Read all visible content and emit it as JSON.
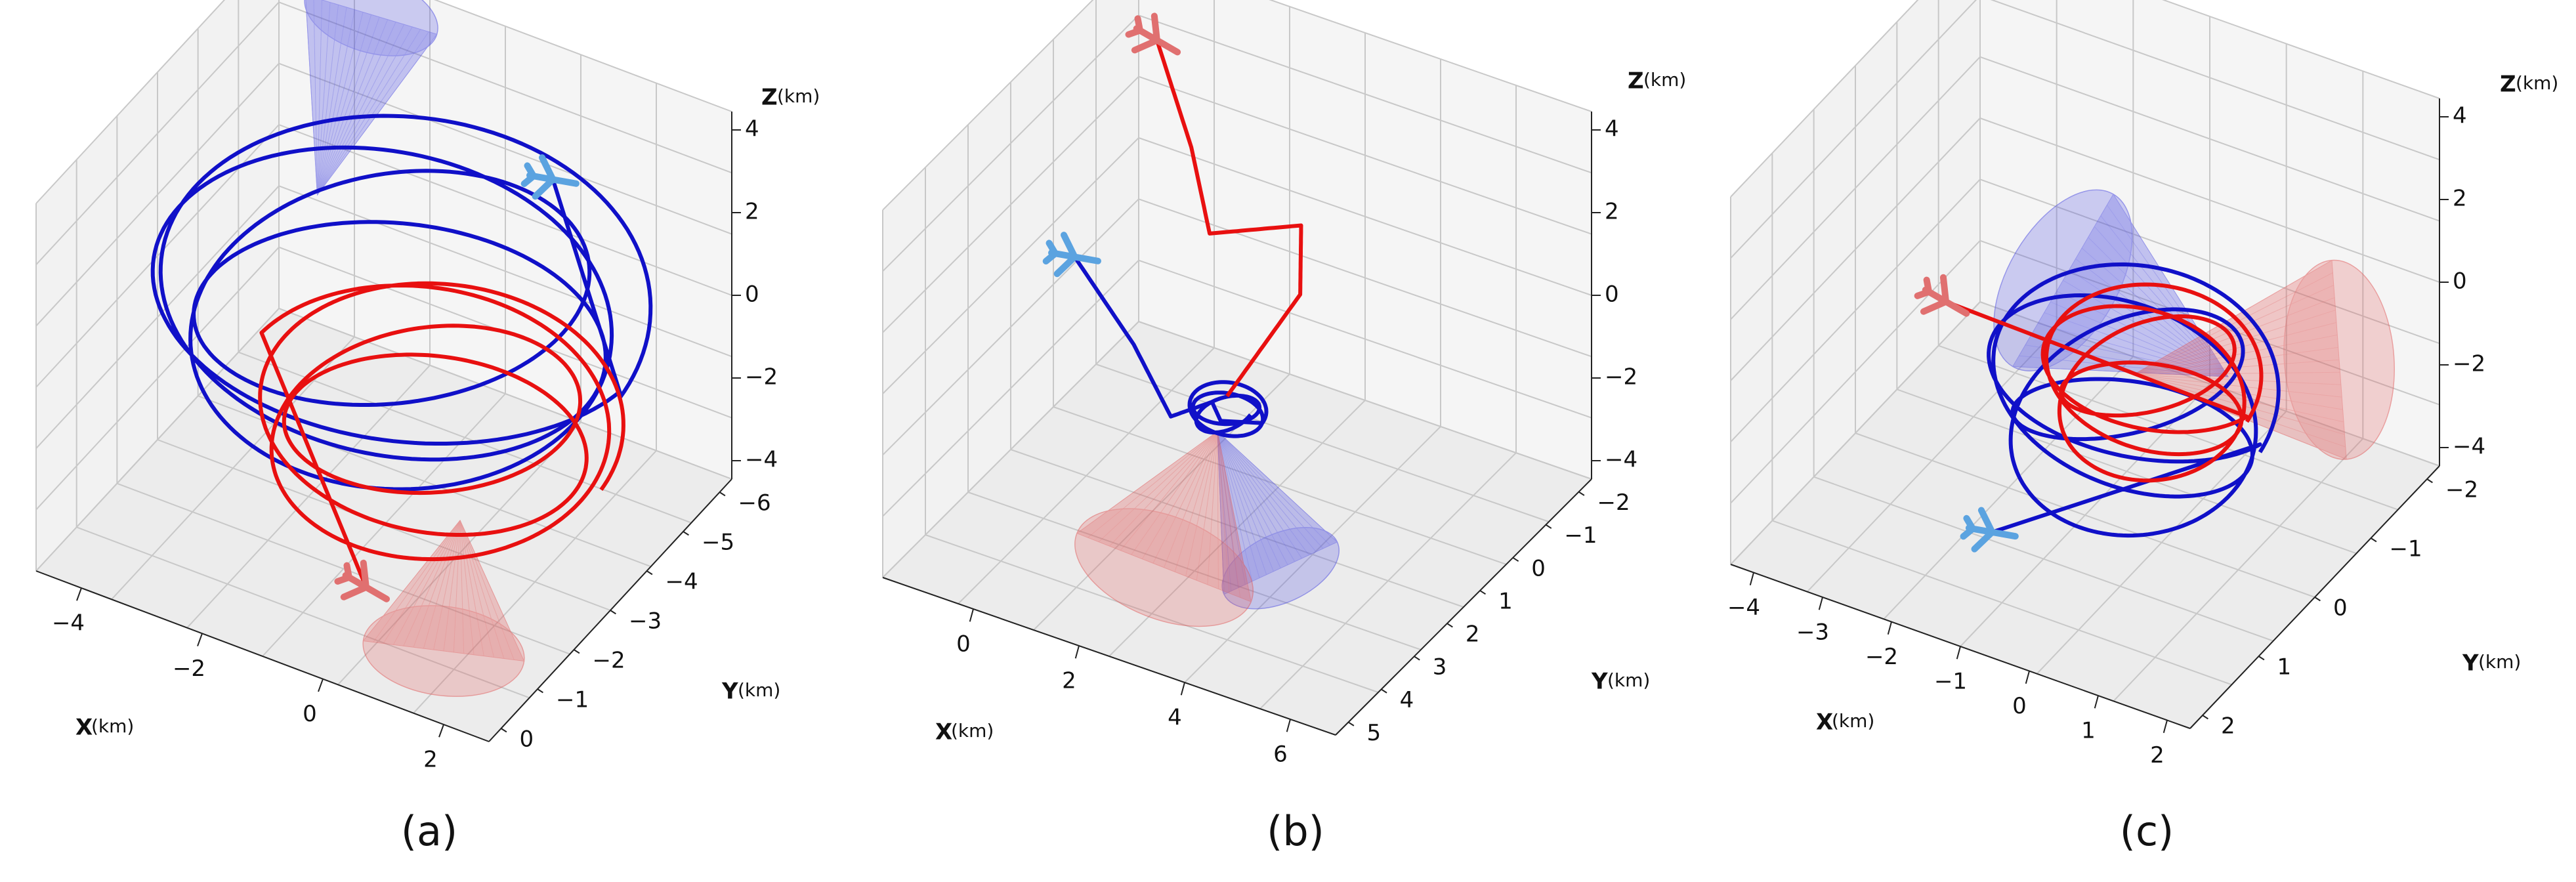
{
  "figure": {
    "panel_labels": [
      "(a)",
      "(b)",
      "(c)"
    ],
    "axis_titles": {
      "x": "X",
      "y": "Y",
      "z": "Z",
      "unit": "(km)"
    }
  },
  "colors": {
    "blue_track": "#1010c8",
    "red_track": "#e81010",
    "aircraft_blue": "#5ba3e0",
    "aircraft_red": "#e07070",
    "blue_cone": "#4a4ae0",
    "red_cone": "#e05a5a",
    "pane": "#ececec",
    "grid": "#c8c8c8"
  },
  "chart_data": [
    {
      "type": "line",
      "subtype": "3d-trajectory",
      "label": "(a)",
      "xlabel": "X (km)",
      "ylabel": "Y (km)",
      "zlabel": "Z (km)",
      "x_ticks": [
        "−4",
        "−2",
        "0",
        "2"
      ],
      "y_ticks": [
        "0",
        "−1",
        "−2",
        "−3",
        "−4",
        "−5",
        "−6"
      ],
      "z_ticks": [
        "4",
        "2",
        "0",
        "−2",
        "−4"
      ],
      "xlim": [
        -5,
        3
      ],
      "ylim": [
        -6,
        0.5
      ],
      "zlim": [
        -5,
        5
      ],
      "grid": true,
      "series": [
        {
          "color": "blue",
          "kind": "spiral",
          "cx": -1,
          "cy": -2.5,
          "cz": 0.5,
          "rx": 4,
          "ry": 3.5,
          "z_amp": 1.2,
          "turns": 4,
          "end": [
            0.5,
            -0.5,
            2.8
          ]
        },
        {
          "color": "red",
          "kind": "spiral",
          "cx": 0.2,
          "cy": -3.3,
          "cz": -1.0,
          "rx": 3.0,
          "ry": 2.6,
          "z_amp": 0.8,
          "turns": 3.5,
          "end": [
            0.5,
            -5.5,
            -2.8
          ]
        }
      ],
      "cones": [
        {
          "color": "blue",
          "apex": [
            -3.2,
            -1.2,
            1.0
          ],
          "base": [
            -3.7,
            1.0,
            3.2
          ],
          "radius": 1.1
        },
        {
          "color": "red",
          "apex": [
            1.5,
            -4.5,
            -1.5
          ],
          "base": [
            2.2,
            -6.0,
            -3.0
          ],
          "radius": 1.3
        }
      ]
    },
    {
      "type": "line",
      "subtype": "3d-trajectory",
      "label": "(b)",
      "xlabel": "X (km)",
      "ylabel": "Y (km)",
      "zlabel": "Z (km)",
      "x_ticks": [
        "0",
        "2",
        "4",
        "6"
      ],
      "y_ticks": [
        "5",
        "4",
        "3",
        "2",
        "1",
        "0",
        "−1",
        "−2"
      ],
      "z_ticks": [
        "4",
        "2",
        "0",
        "−2",
        "−4"
      ],
      "xlim": [
        -1.5,
        7.5
      ],
      "ylim": [
        -2.5,
        5.5
      ],
      "zlim": [
        -5,
        5
      ],
      "grid": true,
      "series": [
        {
          "color": "blue",
          "kind": "path",
          "points": [
            [
              -1.5,
              3.5,
              -1.5
            ],
            [
              0.5,
              2.2,
              -1.8
            ],
            [
              2.0,
              1.0,
              -2.0
            ],
            [
              2.5,
              1.5,
              -1.8
            ],
            [
              2.8,
              1.3,
              -2.0
            ]
          ],
          "loops_at": [
            2.8,
            1.5,
            -1.9
          ],
          "loop_r": 0.7,
          "loops": 3
        },
        {
          "color": "red",
          "kind": "path",
          "points": [
            [
              -0.5,
              4.5,
              4.0
            ],
            [
              0.5,
              4.0,
              2.0
            ],
            [
              1.5,
              3.0,
              1.0
            ],
            [
              3.0,
              3.5,
              1.5
            ],
            [
              3.3,
              3.0,
              0.2
            ],
            [
              2.8,
              1.5,
              -1.5
            ]
          ]
        }
      ],
      "cones": [
        {
          "color": "blue",
          "apex": [
            2.8,
            1.2,
            -2.2
          ],
          "base": [
            4.5,
            0.5,
            -4.5
          ],
          "radius": 1.0
        },
        {
          "color": "red",
          "apex": [
            2.8,
            1.2,
            -2.2
          ],
          "base": [
            2.5,
            0.0,
            -5.0
          ],
          "radius": 1.5
        }
      ]
    },
    {
      "type": "line",
      "subtype": "3d-trajectory",
      "label": "(c)",
      "xlabel": "X (km)",
      "ylabel": "Y (km)",
      "zlabel": "Z (km)",
      "x_ticks": [
        "−4",
        "−3",
        "−2",
        "−1",
        "0",
        "1",
        "2"
      ],
      "y_ticks": [
        "2",
        "1",
        "0",
        "−1",
        "−2"
      ],
      "z_ticks": [
        "4",
        "2",
        "0",
        "−2",
        "−4"
      ],
      "xlim": [
        -4.5,
        2.5
      ],
      "ylim": [
        -2.5,
        3.0
      ],
      "zlim": [
        -5,
        5
      ],
      "grid": true,
      "series": [
        {
          "color": "blue",
          "kind": "spiral",
          "cx": -0.3,
          "cy": 0.2,
          "cz": -1.5,
          "rx": 2.0,
          "ry": 1.7,
          "z_amp": 1.5,
          "turns": 4,
          "end": [
            -1.0,
            -1.8,
            -2.8
          ]
        },
        {
          "color": "red",
          "kind": "spiral",
          "cx": 0.0,
          "cy": 0.2,
          "cz": -0.8,
          "rx": 1.5,
          "ry": 1.3,
          "z_amp": 1.0,
          "turns": 4,
          "end": [
            -3.5,
            0.8,
            -1.5
          ]
        }
      ],
      "cones": [
        {
          "color": "blue",
          "apex": [
            0.8,
            0.8,
            -0.8
          ],
          "base": [
            -2.2,
            1.5,
            -1.0
          ],
          "radius": 1.6
        },
        {
          "color": "red",
          "apex": [
            -0.3,
            0.3,
            -0.8
          ],
          "base": [
            1.8,
            1.8,
            -1.0
          ],
          "radius": 1.6
        }
      ]
    }
  ]
}
